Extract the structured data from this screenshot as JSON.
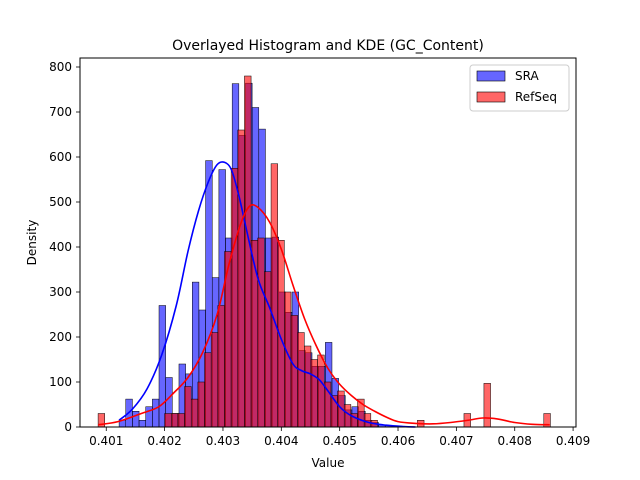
{
  "chart_data": {
    "type": "histogram",
    "title": "Overlayed Histogram and KDE (GC_Content)",
    "xlabel": "Value",
    "ylabel": "Density",
    "xlim": [
      0.40055,
      0.40905
    ],
    "ylim": [
      0,
      820
    ],
    "xticks": [
      0.401,
      0.402,
      0.403,
      0.404,
      0.405,
      0.406,
      0.407,
      0.408,
      0.409
    ],
    "xtick_labels": [
      "0.401",
      "0.402",
      "0.403",
      "0.404",
      "0.405",
      "0.406",
      "0.407",
      "0.408",
      "0.409"
    ],
    "yticks": [
      0,
      100,
      200,
      300,
      400,
      500,
      600,
      700,
      800
    ],
    "ytick_labels": [
      "0",
      "100",
      "200",
      "300",
      "400",
      "500",
      "600",
      "700",
      "800"
    ],
    "grid": false,
    "legend_position": "top-right",
    "series": [
      {
        "name": "SRA",
        "color": "#0000ff",
        "bin_start": 0.40122,
        "bin_width": 0.000114,
        "values": [
          15,
          62,
          35,
          15,
          45,
          62,
          270,
          110,
          30,
          140,
          118,
          322,
          260,
          592,
          332,
          572,
          420,
          763,
          648,
          764,
          710,
          662,
          420,
          422,
          300,
          255,
          300,
          170,
          165,
          135,
          135,
          188,
          108,
          70,
          38,
          45,
          35,
          15,
          10,
          5,
          3
        ],
        "kde_x": [
          0.40122,
          0.40145,
          0.4017,
          0.40195,
          0.4022,
          0.4024,
          0.40258,
          0.40275,
          0.4029,
          0.40303,
          0.40315,
          0.40328,
          0.4034,
          0.4036,
          0.4038,
          0.404,
          0.4042,
          0.40435,
          0.4045,
          0.40465,
          0.4048,
          0.405,
          0.4052,
          0.4055,
          0.4058,
          0.4061,
          0.4063
        ],
        "kde_y": [
          15,
          40,
          85,
          160,
          270,
          390,
          480,
          545,
          583,
          588,
          570,
          510,
          440,
          330,
          265,
          195,
          140,
          125,
          118,
          105,
          80,
          45,
          25,
          10,
          4,
          1,
          0
        ]
      },
      {
        "name": "RefSeq",
        "color": "#ff0000",
        "bin_start": 0.40086,
        "bin_width": 0.000114,
        "values": [
          30,
          0,
          0,
          0,
          0,
          0,
          0,
          0,
          0,
          0,
          30,
          30,
          30,
          90,
          62,
          100,
          165,
          210,
          270,
          390,
          575,
          660,
          780,
          415,
          420,
          345,
          585,
          415,
          300,
          248,
          210,
          180,
          150,
          160,
          100,
          70,
          80,
          50,
          30,
          62,
          30,
          15,
          0,
          0,
          0,
          0,
          0,
          0,
          15,
          0,
          0,
          0,
          0,
          0,
          0,
          30,
          0,
          0,
          97,
          0,
          0,
          0,
          0,
          0,
          0,
          0,
          0,
          30
        ],
        "kde_x": [
          0.40086,
          0.4012,
          0.4016,
          0.4019,
          0.40215,
          0.4024,
          0.40265,
          0.4029,
          0.4031,
          0.4033,
          0.40345,
          0.4036,
          0.4038,
          0.404,
          0.4042,
          0.4044,
          0.4046,
          0.4048,
          0.405,
          0.4052,
          0.4054,
          0.4056,
          0.4058,
          0.406,
          0.4063,
          0.4066,
          0.4069,
          0.4072,
          0.40745,
          0.4077,
          0.408,
          0.4083,
          0.4086
        ],
        "kde_y": [
          5,
          12,
          30,
          45,
          75,
          110,
          165,
          250,
          360,
          450,
          490,
          488,
          455,
          395,
          315,
          240,
          180,
          130,
          95,
          70,
          50,
          35,
          22,
          12,
          8,
          7,
          10,
          15,
          20,
          18,
          10,
          6,
          5
        ]
      }
    ]
  }
}
